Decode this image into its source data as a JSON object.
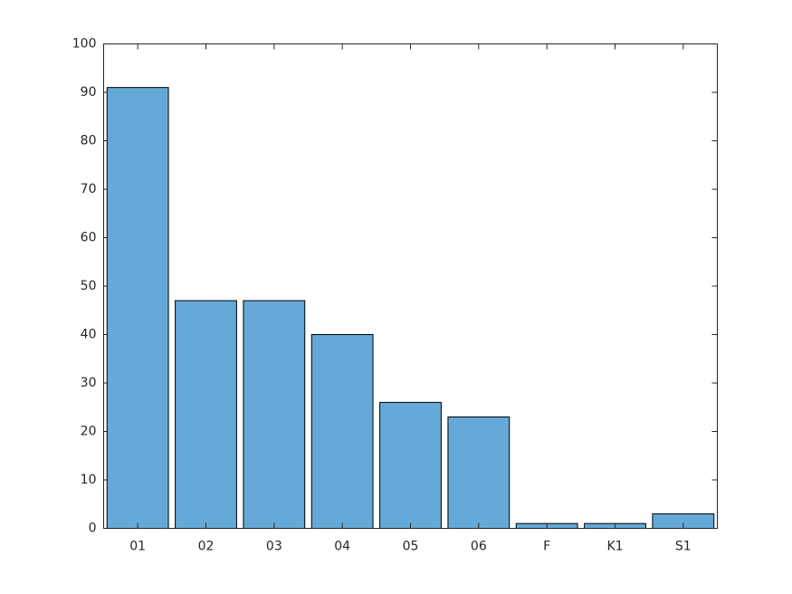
{
  "chart_data": {
    "type": "bar",
    "categories": [
      "01",
      "02",
      "03",
      "04",
      "05",
      "06",
      "F",
      "K1",
      "S1"
    ],
    "values": [
      91,
      47,
      47,
      40,
      26,
      23,
      1,
      1,
      3
    ],
    "color": "#65a9d8",
    "ylim": [
      0,
      100
    ],
    "yticks": [
      0,
      10,
      20,
      30,
      40,
      50,
      60,
      70,
      80,
      90,
      100
    ]
  }
}
